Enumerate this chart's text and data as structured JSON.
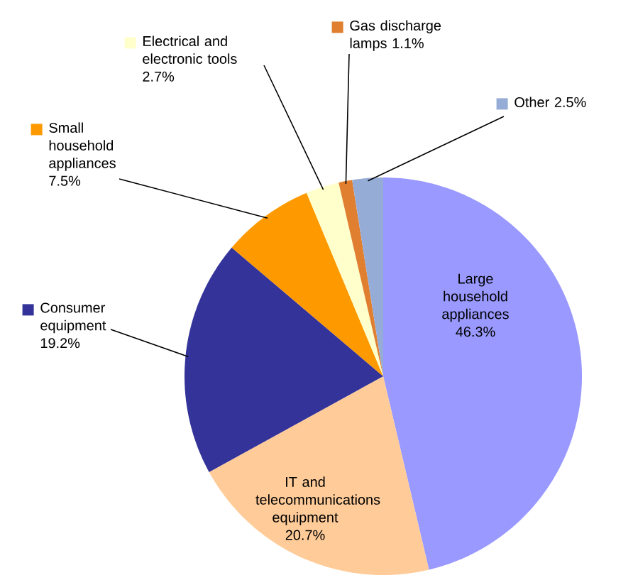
{
  "chart_data": {
    "type": "pie",
    "categories": [
      "Large household appliances",
      "IT and telecommunications equipment",
      "Consumer equipment",
      "Small household appliances",
      "Electrical and electronic tools",
      "Gas discharge lamps",
      "Other"
    ],
    "values": [
      46.3,
      20.7,
      19.2,
      7.5,
      2.7,
      1.1,
      2.5
    ],
    "colors": [
      "#9999ff",
      "#ffcc99",
      "#333399",
      "#ff9900",
      "#ffffcc",
      "#e07f30",
      "#95acd7"
    ],
    "legend": "top left",
    "value_labels": [
      "46.3%",
      "20.7%",
      "19.2%",
      "7.5%",
      "2.7%",
      "1.1%",
      "2.5%"
    ]
  }
}
